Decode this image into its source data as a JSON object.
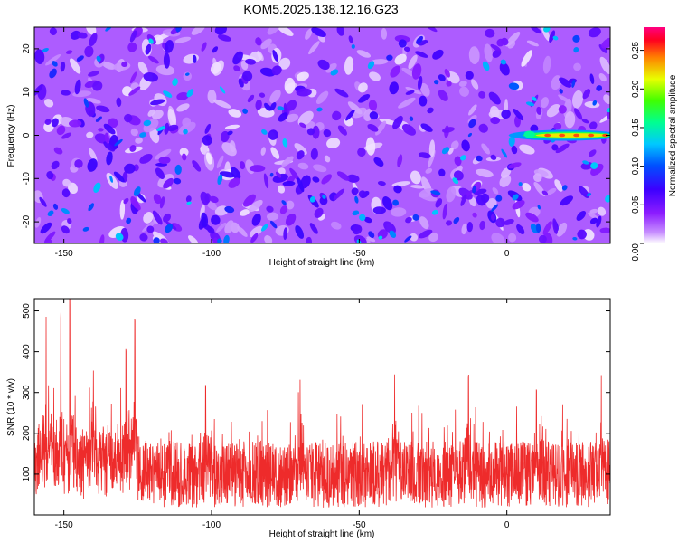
{
  "title": "KOM5.2025.138.12.16.G23",
  "chart_data": [
    {
      "type": "heatmap",
      "xlabel": "Height of straight line (km)",
      "ylabel": "Frequency (Hz)",
      "xlim": [
        -160,
        35
      ],
      "ylim": [
        -25,
        25
      ],
      "x_ticks": [
        -150,
        -100,
        -50,
        0
      ],
      "y_ticks": [
        -20,
        -10,
        0,
        10,
        20
      ],
      "colorbar": {
        "label": "Normalized spectral amplitude",
        "range": [
          0,
          0.28
        ],
        "ticks": [
          0.0,
          0.05,
          0.1,
          0.15,
          0.2,
          0.25
        ],
        "tick_labels": [
          "0.00",
          "0.05",
          "0.10",
          "0.15",
          "0.20",
          "0.25"
        ],
        "colormap": [
          "#ffffff",
          "#9b30ff",
          "#5a00e0",
          "#0000ff",
          "#00d0ff",
          "#00ff60",
          "#ffff00",
          "#ff0000",
          "#ff0066"
        ]
      },
      "background_level": 0.03,
      "peak_feature": {
        "x_start": 0,
        "x_end": 33,
        "frequency": 0,
        "amplitude": 0.25
      }
    },
    {
      "type": "line",
      "xlabel": "Height of straight line (km)",
      "ylabel": "SNR (10 * v/v)",
      "xlim": [
        -160,
        35
      ],
      "ylim": [
        0,
        530
      ],
      "x_ticks": [
        -150,
        -100,
        -50,
        0
      ],
      "y_ticks": [
        100,
        200,
        300,
        400,
        500
      ],
      "color": "#ee2b2b",
      "baseline_mean": 120,
      "peaks": [
        {
          "x": -148,
          "y": 520
        },
        {
          "x": -151,
          "y": 460
        },
        {
          "x": -156,
          "y": 440
        },
        {
          "x": -126,
          "y": 480
        },
        {
          "x": -129,
          "y": 360
        },
        {
          "x": -140,
          "y": 310
        },
        {
          "x": -102,
          "y": 320
        },
        {
          "x": -70,
          "y": 340
        },
        {
          "x": -38,
          "y": 350
        },
        {
          "x": -13,
          "y": 345
        },
        {
          "x": 10,
          "y": 310
        },
        {
          "x": 32,
          "y": 355
        }
      ]
    }
  ]
}
